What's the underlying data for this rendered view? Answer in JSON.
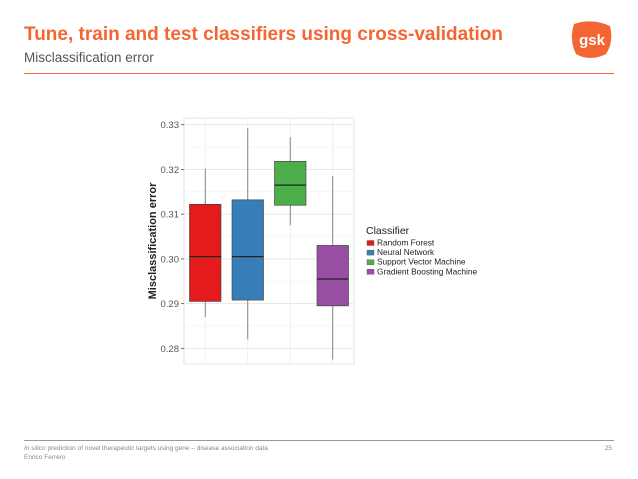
{
  "slide": {
    "title": "Tune, train and test classifiers using cross-validation",
    "subtitle": "Misclassification error",
    "logo_text": "gsk",
    "footer_line1_italic": "In silico",
    "footer_line1_rest": " prediction of novel therapeutic targets using gene – disease association data",
    "footer_line2": "Enrico Ferrero",
    "page_number": "25",
    "accent_color": "#f36633"
  },
  "chart_data": {
    "type": "boxplot",
    "ylabel": "Misclassification error",
    "xlabel": "",
    "ylim": [
      0.2765,
      0.3315
    ],
    "yticks": [
      0.28,
      0.29,
      0.3,
      0.31,
      0.32,
      0.33
    ],
    "ytick_labels": [
      "0.28",
      "0.29",
      "0.30",
      "0.31",
      "0.32",
      "0.33"
    ],
    "grid": true,
    "legend": {
      "title": "Classifier",
      "position": "right"
    },
    "series": [
      {
        "name": "Random Forest",
        "color": "#e41a1c",
        "whisker_low": 0.287,
        "q1": 0.2905,
        "median": 0.3005,
        "q3": 0.3122,
        "whisker_high": 0.3202
      },
      {
        "name": "Neural Network",
        "color": "#377eb8",
        "whisker_low": 0.282,
        "q1": 0.2908,
        "median": 0.3005,
        "q3": 0.3132,
        "whisker_high": 0.3292
      },
      {
        "name": "Support Vector Machine",
        "color": "#4daf4a",
        "whisker_low": 0.3075,
        "q1": 0.312,
        "median": 0.3165,
        "q3": 0.3218,
        "whisker_high": 0.3272
      },
      {
        "name": "Gradient Boosting Machine",
        "color": "#984ea3",
        "whisker_low": 0.2775,
        "q1": 0.2895,
        "median": 0.2955,
        "q3": 0.303,
        "whisker_high": 0.3185
      }
    ]
  }
}
